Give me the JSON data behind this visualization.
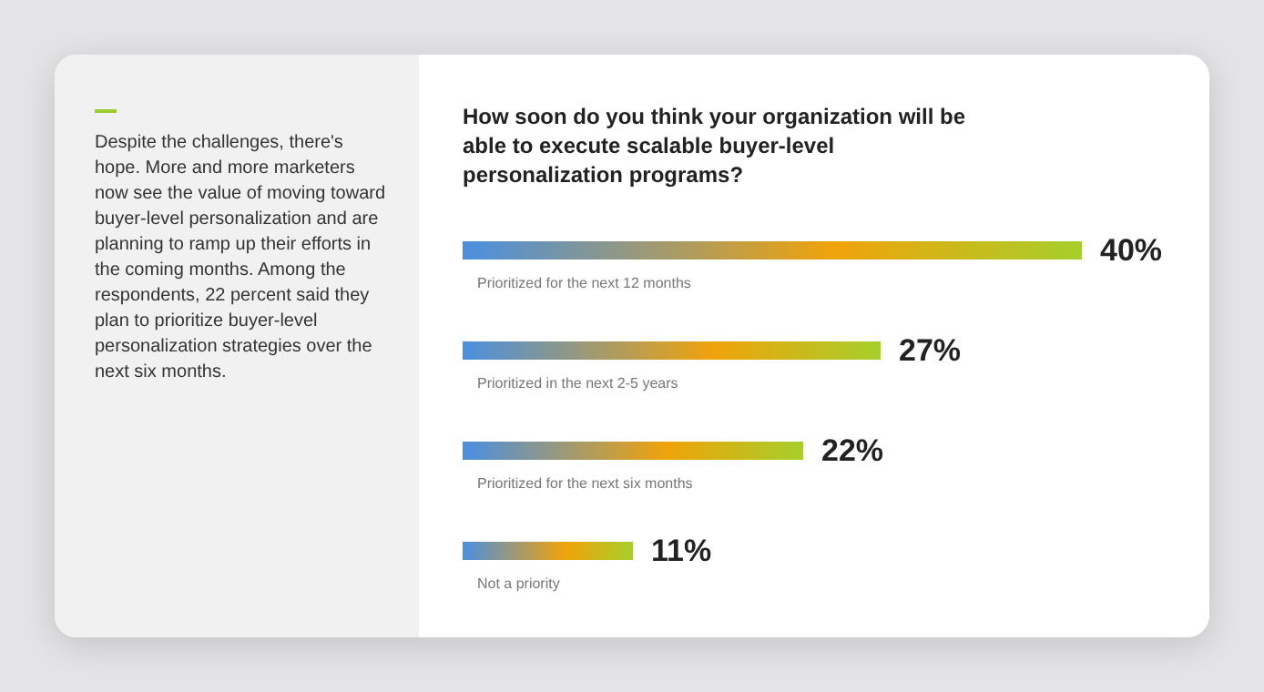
{
  "chart_data": {
    "type": "bar",
    "orientation": "horizontal",
    "title": "How soon do you think your organization will be able to execute scalable buyer-level personalization programs?",
    "categories": [
      "Prioritized for the next 12 months",
      "Prioritized in the next 2-5 years",
      "Prioritized for the next six months",
      "Not a priority"
    ],
    "values": [
      40,
      27,
      22,
      11
    ],
    "value_labels": [
      "40%",
      "27%",
      "22%",
      "11%"
    ],
    "color": "#f0a30a",
    "annotations": [
      "Despite the challenges, there's hope. More and more marketers now see the value of moving toward buyer-level personalization and are planning to ramp up their efforts in the coming months. Among the respondents, 22 percent said they plan to prioritize buyer-level personalization strategies over the next six months."
    ]
  }
}
